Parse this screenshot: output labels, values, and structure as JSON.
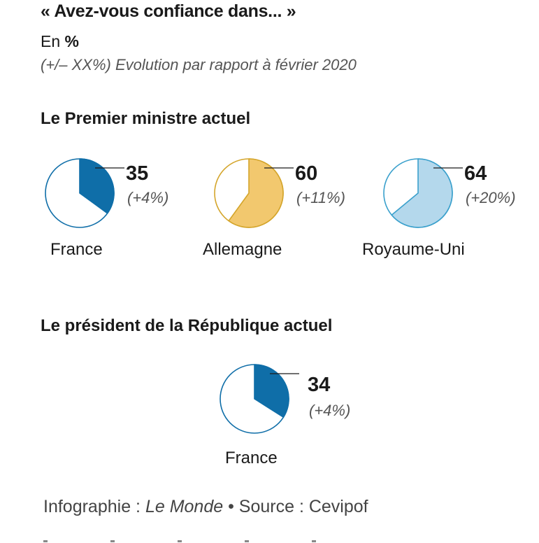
{
  "header": {
    "title": "« Avez-vous confiance dans... »",
    "unit_prefix": "En",
    "unit_symbol": "%",
    "subtitle": "(+/– XX%) Evolution par rapport à février 2020"
  },
  "chart_data": [
    {
      "type": "pie",
      "title": "Le Premier ministre actuel",
      "slices": [
        {
          "label": "France",
          "value": 35,
          "change": "(+4%)",
          "color": "#0f6ea8",
          "edge": "#0f6ea8"
        },
        {
          "label": "Allemagne",
          "value": 60,
          "change": "(+11%)",
          "color": "#f2c86e",
          "edge": "#d4a52b"
        },
        {
          "label": "Royaume-Uni",
          "value": 64,
          "change": "(+20%)",
          "color": "#b4d8ec",
          "edge": "#3aa0cc"
        }
      ]
    },
    {
      "type": "pie",
      "title": "Le président de la République actuel",
      "slices": [
        {
          "label": "France",
          "value": 34,
          "change": "(+4%)",
          "color": "#0f6ea8",
          "edge": "#0f6ea8"
        }
      ]
    }
  ],
  "footer": {
    "prefix": "Infographie : ",
    "outlet": "Le Monde",
    "separator": " • ",
    "source": "Source : Cevipof"
  }
}
